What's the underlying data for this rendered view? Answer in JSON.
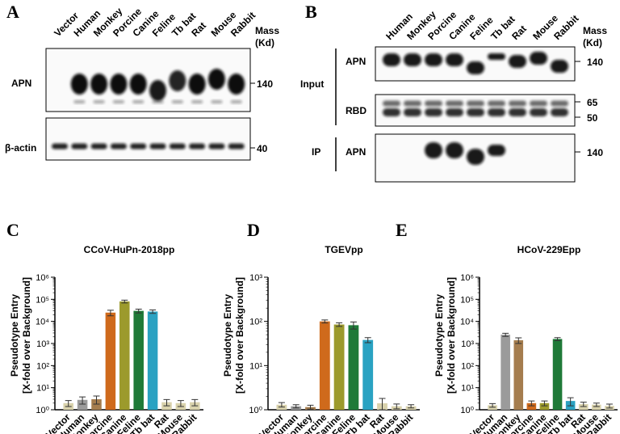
{
  "blots": [
    {
      "label": "A",
      "lanes": [
        "Vector",
        "Human",
        "Monkey",
        "Porcine",
        "Canine",
        "Feline",
        "Tb bat",
        "Rat",
        "Mouse",
        "Rabbit"
      ],
      "mass": [
        "Mass",
        "(Kd)"
      ],
      "rows": [
        {
          "name": "APN",
          "markers": [
            140
          ]
        },
        {
          "name": "β-actin",
          "markers": [
            40
          ]
        }
      ]
    },
    {
      "label": "B",
      "lanes": [
        "Human",
        "Monkey",
        "Porcine",
        "Canine",
        "Feline",
        "Tb bat",
        "Rat",
        "Mouse",
        "Rabbit"
      ],
      "lane_colors": [
        "#000000",
        "#000000",
        "#e02020",
        "#e02020",
        "#e02020",
        "#e02020",
        "#000000",
        "#000000",
        "#000000"
      ],
      "mass": [
        "Mass",
        "(Kd)"
      ],
      "groups": [
        {
          "name": "Input",
          "rows": [
            {
              "name": "APN",
              "markers": [
                140
              ]
            },
            {
              "name": "RBD",
              "markers": [
                65,
                50
              ]
            }
          ]
        },
        {
          "name": "IP",
          "rows": [
            {
              "name": "APN",
              "markers": [
                140
              ]
            }
          ]
        }
      ]
    }
  ],
  "chart_data": [
    {
      "type": "bar",
      "label": "C",
      "title": "CCoV-HuPn-2018pp",
      "ylabel": [
        "Pseudotype Entry",
        "[X-fold over Background]"
      ],
      "log_scale": true,
      "ylim": [
        1,
        1000000
      ],
      "yticks": [
        {
          "value": 1,
          "label": "10⁰"
        },
        {
          "value": 10,
          "label": "10¹"
        },
        {
          "value": 100,
          "label": "10²"
        },
        {
          "value": 1000,
          "label": "10³"
        },
        {
          "value": 10000,
          "label": "10⁴"
        },
        {
          "value": 100000,
          "label": "10⁵"
        },
        {
          "value": 1000000,
          "label": "10⁶"
        }
      ],
      "categories": [
        "Vector",
        "Human",
        "Monkey",
        "Porcine",
        "Canine",
        "Feline",
        "Tb bat",
        "Rat",
        "Mouse",
        "Rabbit"
      ],
      "values": [
        2,
        2.8,
        3,
        25000,
        80000,
        30000,
        28000,
        2.2,
        2,
        2.2
      ],
      "errors": [
        0.6,
        1,
        1.2,
        7000,
        12000,
        6000,
        5000,
        0.7,
        0.6,
        0.7
      ],
      "colors": [
        "#d9d2ac",
        "#9b9b9b",
        "#a57d4e",
        "#cf6a1c",
        "#9c9a2c",
        "#1f7a38",
        "#2aa2c2",
        "#d9d2ac",
        "#d9d2ac",
        "#d9d2ac"
      ]
    },
    {
      "type": "bar",
      "label": "D",
      "title": "TGEVpp",
      "ylabel": [
        "Pseudotype Entry",
        "[X-fold over Background]"
      ],
      "log_scale": true,
      "ylim": [
        1,
        1000
      ],
      "yticks": [
        {
          "value": 1,
          "label": "10⁰"
        },
        {
          "value": 10,
          "label": "10¹"
        },
        {
          "value": 100,
          "label": "10²"
        },
        {
          "value": 1000,
          "label": "10³"
        }
      ],
      "categories": [
        "Vector",
        "Human",
        "Monkey",
        "Porcine",
        "Canine",
        "Feline",
        "Tb bat",
        "Rat",
        "Mouse",
        "Rabbit"
      ],
      "values": [
        1.3,
        1.2,
        1.15,
        100,
        85,
        82,
        38,
        1.4,
        1.2,
        1.2
      ],
      "errors": [
        0.15,
        0.1,
        0.12,
        8,
        8,
        15,
        5,
        0.4,
        0.15,
        0.1
      ],
      "colors": [
        "#d9d2ac",
        "#9b9b9b",
        "#a57d4e",
        "#cf6a1c",
        "#9c9a2c",
        "#1f7a38",
        "#2aa2c2",
        "#d9d2ac",
        "#d9d2ac",
        "#d9d2ac"
      ]
    },
    {
      "type": "bar",
      "label": "E",
      "title": "HCoV-229Epp",
      "ylabel": [
        "Pseudotype Entry",
        "[X-fold over Background]"
      ],
      "log_scale": true,
      "ylim": [
        1,
        1000000
      ],
      "yticks": [
        {
          "value": 1,
          "label": "10⁰"
        },
        {
          "value": 10,
          "label": "10¹"
        },
        {
          "value": 100,
          "label": "10²"
        },
        {
          "value": 1000,
          "label": "10³"
        },
        {
          "value": 10000,
          "label": "10⁴"
        },
        {
          "value": 100000,
          "label": "10⁵"
        },
        {
          "value": 1000000,
          "label": "10⁶"
        }
      ],
      "categories": [
        "Vector",
        "Human",
        "Monkey",
        "Porcine",
        "Canine",
        "Feline",
        "Tb bat",
        "Rat",
        "Mouse",
        "Rabbit"
      ],
      "values": [
        1.6,
        2500,
        1400,
        2,
        2,
        1600,
        2.5,
        1.8,
        1.7,
        1.5
      ],
      "errors": [
        0.3,
        400,
        400,
        0.5,
        0.5,
        250,
        1,
        0.4,
        0.3,
        0.3
      ],
      "colors": [
        "#d9d2ac",
        "#9b9b9b",
        "#a57d4e",
        "#cf6a1c",
        "#9c9a2c",
        "#1f7a38",
        "#2aa2c2",
        "#d9d2ac",
        "#d9d2ac",
        "#d9d2ac"
      ]
    }
  ]
}
